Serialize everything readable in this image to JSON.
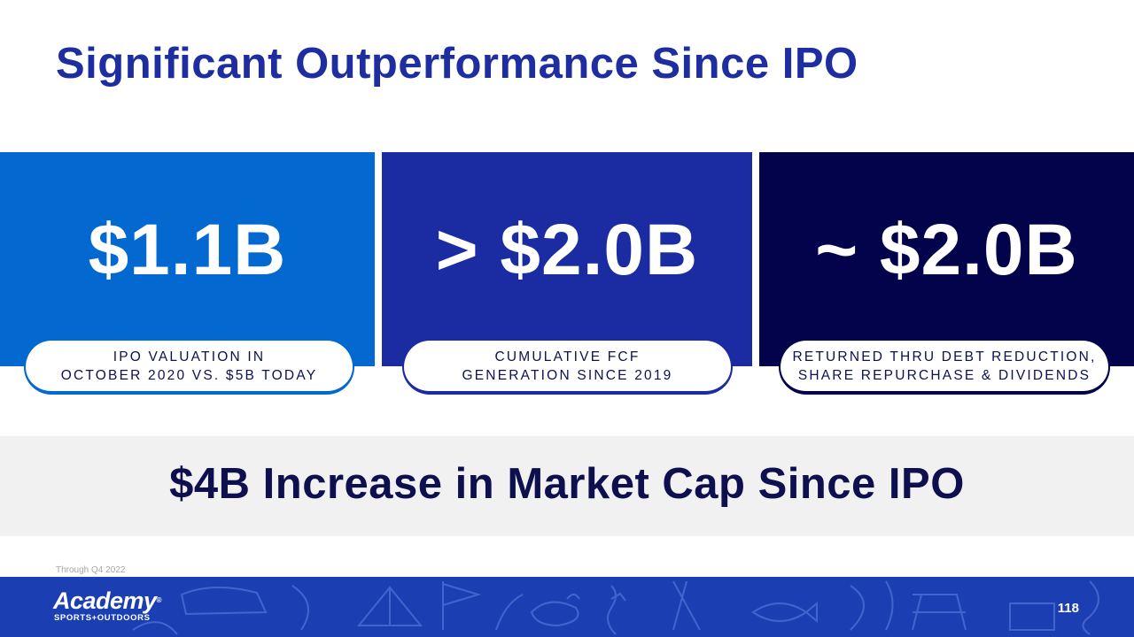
{
  "title": "Significant Outperformance Since IPO",
  "colors": {
    "title": "#1e2ea0",
    "panel_1": "#0369d1",
    "panel_2": "#1b2ba2",
    "panel_3": "#02034a",
    "band_bg": "#f1f1f1",
    "band_text": "#0e0f4f",
    "footer_bg": "#1b3fb3"
  },
  "stats": [
    {
      "value": "$1.1B",
      "caption_line1": "IPO VALUATION IN",
      "caption_line2": "OCTOBER 2020 VS. $5B TODAY"
    },
    {
      "value": "> $2.0B",
      "caption_line1": "CUMULATIVE FCF",
      "caption_line2": "GENERATION SINCE 2019"
    },
    {
      "value": "~ $2.0B",
      "caption_line1": "RETURNED THRU DEBT REDUCTION,",
      "caption_line2": "SHARE REPURCHASE & DIVIDENDS"
    }
  ],
  "highlight": "$4B Increase in Market Cap Since IPO",
  "footnote": "Through Q4 2022",
  "footer": {
    "logo_word": "Academy",
    "logo_sub": "SPORTS+OUTDOORS",
    "logo_tm": "®",
    "page_number": "118"
  }
}
